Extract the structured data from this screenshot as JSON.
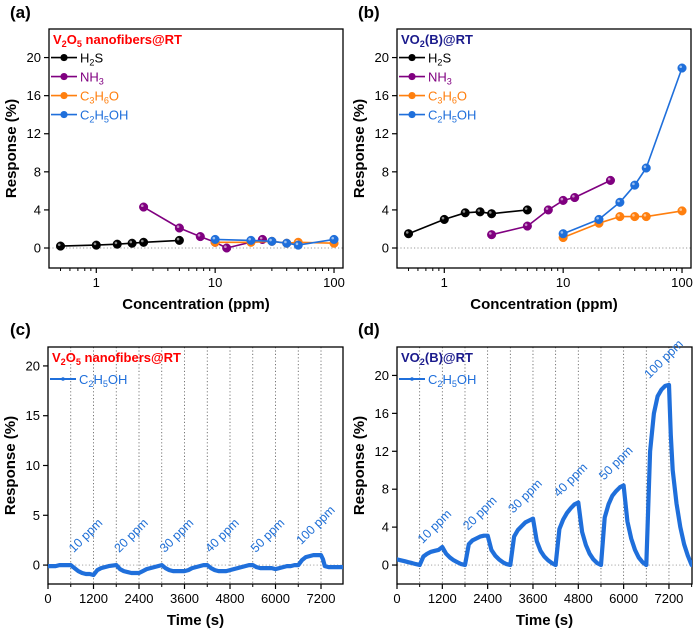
{
  "colors": {
    "H2S": "#000000",
    "NH3": "#800080",
    "C3H6O": "#ff7f0e",
    "C2H5OH": "#1f6fdb",
    "title_a": "#ff0000",
    "title_b": "#1a1a8c",
    "annotation": "#1f6fd6",
    "zero_line": "#9a9a9a"
  },
  "chart_data": [
    {
      "id": "a",
      "panel_label": "(a)",
      "type": "line",
      "title": "V2O5 nanofibers@RT",
      "title_parts": [
        [
          "V",
          ""
        ],
        [
          "2",
          "sub"
        ],
        [
          "O",
          ""
        ],
        [
          "5",
          "sub"
        ],
        [
          " nanofibers@RT",
          ""
        ]
      ],
      "title_color_key": "title_a",
      "xlabel": "Concentration (ppm)",
      "ylabel": "Response (%)",
      "xscale": "log",
      "xlim": [
        0.4,
        119
      ],
      "ylim": [
        -2.1,
        23
      ],
      "xticks": [
        1,
        10,
        100
      ],
      "xtick_labels": [
        "1",
        "10",
        "100"
      ],
      "yticks": [
        0,
        4,
        8,
        12,
        16,
        20
      ],
      "ytick_labels": [
        "0",
        "4",
        "8",
        "12",
        "16",
        "20"
      ],
      "zero_line": true,
      "legend_position": "top-left",
      "series": [
        {
          "name": "H2S",
          "label_parts": [
            [
              "H",
              ""
            ],
            [
              "2",
              "sub"
            ],
            [
              "S",
              ""
            ]
          ],
          "color_key": "H2S",
          "x": [
            0.5,
            1,
            1.5,
            2,
            2.5,
            5
          ],
          "y": [
            0.2,
            0.3,
            0.4,
            0.5,
            0.6,
            0.8
          ]
        },
        {
          "name": "NH3",
          "label_parts": [
            [
              "NH",
              ""
            ],
            [
              "3",
              "sub"
            ]
          ],
          "color_key": "NH3",
          "x": [
            2.5,
            5,
            7.5,
            10,
            12.5,
            25
          ],
          "y": [
            4.3,
            2.1,
            1.2,
            0.6,
            0.0,
            0.9
          ]
        },
        {
          "name": "C3H6O",
          "label_parts": [
            [
              "C",
              ""
            ],
            [
              "3",
              "sub"
            ],
            [
              "H",
              ""
            ],
            [
              "6",
              "sub"
            ],
            [
              "O",
              ""
            ]
          ],
          "color_key": "C3H6O",
          "x": [
            10,
            20,
            30,
            40,
            50,
            100
          ],
          "y": [
            0.6,
            0.6,
            0.7,
            0.5,
            0.6,
            0.5
          ]
        },
        {
          "name": "C2H5OH",
          "label_parts": [
            [
              "C",
              ""
            ],
            [
              "2",
              "sub"
            ],
            [
              "H",
              ""
            ],
            [
              "5",
              "sub"
            ],
            [
              "OH",
              ""
            ]
          ],
          "color_key": "C2H5OH",
          "x": [
            10,
            20,
            30,
            40,
            50,
            100
          ],
          "y": [
            0.9,
            0.8,
            0.7,
            0.5,
            0.3,
            0.9
          ]
        }
      ]
    },
    {
      "id": "b",
      "panel_label": "(b)",
      "type": "line",
      "title": "VO2(B)@RT",
      "title_parts": [
        [
          "VO",
          ""
        ],
        [
          "2",
          "sub"
        ],
        [
          "(B)@RT",
          ""
        ]
      ],
      "title_color_key": "title_b",
      "xlabel": "Concentration (ppm)",
      "ylabel": "Response (%)",
      "xscale": "log",
      "xlim": [
        0.4,
        119
      ],
      "ylim": [
        -2.1,
        23
      ],
      "xticks": [
        1,
        10,
        100
      ],
      "xtick_labels": [
        "1",
        "10",
        "100"
      ],
      "yticks": [
        0,
        4,
        8,
        12,
        16,
        20
      ],
      "ytick_labels": [
        "0",
        "4",
        "8",
        "12",
        "16",
        "20"
      ],
      "zero_line": true,
      "legend_position": "top-left",
      "series": [
        {
          "name": "H2S",
          "label_parts": [
            [
              "H",
              ""
            ],
            [
              "2",
              "sub"
            ],
            [
              "S",
              ""
            ]
          ],
          "color_key": "H2S",
          "x": [
            0.5,
            1,
            1.5,
            2,
            2.5,
            5
          ],
          "y": [
            1.5,
            3.0,
            3.7,
            3.8,
            3.6,
            4.0
          ]
        },
        {
          "name": "NH3",
          "label_parts": [
            [
              "NH",
              ""
            ],
            [
              "3",
              "sub"
            ]
          ],
          "color_key": "NH3",
          "x": [
            2.5,
            5,
            7.5,
            10,
            12.5,
            25
          ],
          "y": [
            1.4,
            2.3,
            4.0,
            5.0,
            5.3,
            7.1
          ]
        },
        {
          "name": "C3H6O",
          "label_parts": [
            [
              "C",
              ""
            ],
            [
              "3",
              "sub"
            ],
            [
              "H",
              ""
            ],
            [
              "6",
              "sub"
            ],
            [
              "O",
              ""
            ]
          ],
          "color_key": "C3H6O",
          "x": [
            10,
            20,
            30,
            40,
            50,
            100
          ],
          "y": [
            1.1,
            2.6,
            3.3,
            3.3,
            3.3,
            3.9
          ]
        },
        {
          "name": "C2H5OH",
          "label_parts": [
            [
              "C",
              ""
            ],
            [
              "2",
              "sub"
            ],
            [
              "H",
              ""
            ],
            [
              "5",
              "sub"
            ],
            [
              "OH",
              ""
            ]
          ],
          "color_key": "C2H5OH",
          "x": [
            10,
            20,
            30,
            40,
            50,
            100
          ],
          "y": [
            1.5,
            3.0,
            4.8,
            6.6,
            8.4,
            18.9
          ]
        }
      ]
    },
    {
      "id": "c",
      "panel_label": "(c)",
      "type": "line",
      "title": "V2O5 nanofibers@RT",
      "title_parts": [
        [
          "V",
          ""
        ],
        [
          "2",
          "sub"
        ],
        [
          "O",
          ""
        ],
        [
          "5",
          "sub"
        ],
        [
          " nanofibers@RT",
          ""
        ]
      ],
      "title_color_key": "title_a",
      "xlabel": "Time (s)",
      "ylabel": "Response (%)",
      "xscale": "linear",
      "xlim": [
        0,
        7780
      ],
      "ylim": [
        -1.9,
        21.9
      ],
      "xticks": [
        0,
        1200,
        2400,
        3600,
        4800,
        6000,
        7200
      ],
      "xtick_labels": [
        "0",
        "1200",
        "2400",
        "3600",
        "4800",
        "6000",
        "7200"
      ],
      "yticks": [
        0,
        5,
        10,
        15,
        20
      ],
      "ytick_labels": [
        "0",
        "5",
        "10",
        "15",
        "20"
      ],
      "zero_line": true,
      "vlines": [
        600,
        1200,
        1800,
        2400,
        3000,
        3600,
        4200,
        4800,
        5400,
        6000,
        6600,
        7200
      ],
      "legend_position": "top-left",
      "annotations": [
        {
          "text": "10 ppm",
          "x": 600,
          "y": 1.0
        },
        {
          "text": "20 ppm",
          "x": 1800,
          "y": 1.0
        },
        {
          "text": "30 ppm",
          "x": 3000,
          "y": 1.0
        },
        {
          "text": "40 ppm",
          "x": 4200,
          "y": 1.0
        },
        {
          "text": "50 ppm",
          "x": 5400,
          "y": 1.0
        },
        {
          "text": "100 ppm",
          "x": 6600,
          "y": 1.8
        }
      ],
      "series": [
        {
          "name": "C2H5OH",
          "label_parts": [
            [
              "C",
              ""
            ],
            [
              "2",
              "sub"
            ],
            [
              "H",
              ""
            ],
            [
              "5",
              "sub"
            ],
            [
              "OH",
              ""
            ]
          ],
          "color_key": "C2H5OH",
          "x": [
            0,
            100,
            200,
            300,
            400,
            500,
            600,
            700,
            800,
            900,
            1000,
            1100,
            1200,
            1300,
            1400,
            1500,
            1600,
            1700,
            1800,
            1900,
            2000,
            2100,
            2200,
            2300,
            2400,
            2500,
            2600,
            2700,
            2800,
            2900,
            3000,
            3100,
            3200,
            3300,
            3400,
            3500,
            3600,
            3700,
            3800,
            3900,
            4000,
            4100,
            4200,
            4300,
            4400,
            4500,
            4600,
            4700,
            4800,
            4900,
            5000,
            5100,
            5200,
            5300,
            5400,
            5500,
            5600,
            5700,
            5800,
            5900,
            6000,
            6100,
            6200,
            6300,
            6400,
            6500,
            6600,
            6700,
            6800,
            6900,
            7000,
            7100,
            7200,
            7250,
            7300,
            7400,
            7500,
            7600,
            7700,
            7780
          ],
          "y": [
            -0.1,
            -0.1,
            -0.1,
            0.0,
            0.0,
            0.0,
            0.0,
            -0.3,
            -0.6,
            -0.8,
            -0.9,
            -0.9,
            -1.0,
            -0.5,
            -0.3,
            -0.2,
            -0.1,
            -0.05,
            0.0,
            -0.4,
            -0.6,
            -0.7,
            -0.8,
            -0.8,
            -0.8,
            -0.6,
            -0.4,
            -0.3,
            -0.2,
            -0.1,
            0.0,
            -0.3,
            -0.5,
            -0.6,
            -0.6,
            -0.6,
            -0.6,
            -0.5,
            -0.3,
            -0.2,
            -0.1,
            0.0,
            0.0,
            -0.3,
            -0.5,
            -0.6,
            -0.6,
            -0.6,
            -0.5,
            -0.4,
            -0.3,
            -0.2,
            -0.1,
            0.0,
            0.0,
            -0.2,
            -0.3,
            -0.3,
            -0.3,
            -0.3,
            -0.4,
            -0.3,
            -0.2,
            -0.1,
            -0.1,
            0.0,
            0.0,
            0.5,
            0.8,
            0.9,
            1.0,
            1.0,
            1.0,
            0.6,
            -0.1,
            -0.2,
            -0.2,
            -0.2,
            -0.2,
            -0.2
          ]
        }
      ]
    },
    {
      "id": "d",
      "panel_label": "(d)",
      "type": "line",
      "title": "VO2(B)@RT",
      "title_parts": [
        [
          "VO",
          ""
        ],
        [
          "2",
          "sub"
        ],
        [
          "(B)@RT",
          ""
        ]
      ],
      "title_color_key": "title_b",
      "xlabel": "Time (s)",
      "ylabel": "Response (%)",
      "xscale": "linear",
      "xlim": [
        0,
        7810
      ],
      "ylim": [
        -2.0,
        23
      ],
      "xticks": [
        0,
        1200,
        2400,
        3600,
        4800,
        6000,
        7200
      ],
      "xtick_labels": [
        "0",
        "1200",
        "2400",
        "3600",
        "4800",
        "6000",
        "7200"
      ],
      "yticks": [
        0,
        4,
        8,
        12,
        16,
        20
      ],
      "ytick_labels": [
        "0",
        "4",
        "8",
        "12",
        "16",
        "20"
      ],
      "zero_line": true,
      "vlines": [
        600,
        1200,
        1800,
        2400,
        3000,
        3600,
        4200,
        4800,
        5400,
        6000,
        6600,
        7200
      ],
      "legend_position": "top-left",
      "annotations": [
        {
          "text": "10 ppm",
          "x": 600,
          "y": 2.0
        },
        {
          "text": "20 ppm",
          "x": 1800,
          "y": 3.4
        },
        {
          "text": "30 ppm",
          "x": 3000,
          "y": 5.2
        },
        {
          "text": "40 ppm",
          "x": 4200,
          "y": 6.9
        },
        {
          "text": "50 ppm",
          "x": 5400,
          "y": 8.7
        },
        {
          "text": "100 ppm",
          "x": 6600,
          "y": 19.4
        }
      ],
      "series": [
        {
          "name": "C2H5OH",
          "label_parts": [
            [
              "C",
              ""
            ],
            [
              "2",
              "sub"
            ],
            [
              "H",
              ""
            ],
            [
              "5",
              "sub"
            ],
            [
              "OH",
              ""
            ]
          ],
          "color_key": "C2H5OH",
          "x": [
            0,
            100,
            200,
            300,
            400,
            500,
            600,
            700,
            800,
            900,
            1000,
            1100,
            1200,
            1300,
            1400,
            1500,
            1600,
            1700,
            1800,
            1900,
            2000,
            2100,
            2200,
            2300,
            2400,
            2500,
            2600,
            2700,
            2800,
            2900,
            3000,
            3100,
            3200,
            3300,
            3400,
            3500,
            3600,
            3700,
            3800,
            3900,
            4000,
            4100,
            4200,
            4300,
            4400,
            4500,
            4600,
            4700,
            4800,
            4900,
            5000,
            5100,
            5200,
            5300,
            5400,
            5500,
            5600,
            5700,
            5800,
            5900,
            6000,
            6100,
            6200,
            6300,
            6400,
            6500,
            6600,
            6700,
            6800,
            6900,
            7000,
            7100,
            7200,
            7250,
            7300,
            7400,
            7500,
            7600,
            7700,
            7800
          ],
          "y": [
            0.6,
            0.5,
            0.4,
            0.3,
            0.2,
            0.1,
            0.0,
            0.9,
            1.2,
            1.4,
            1.5,
            1.6,
            1.9,
            1.2,
            0.8,
            0.5,
            0.3,
            0.1,
            0.0,
            2.2,
            2.6,
            2.8,
            3.0,
            3.1,
            3.1,
            1.6,
            1.0,
            0.6,
            0.3,
            0.1,
            0.0,
            3.0,
            3.7,
            4.1,
            4.5,
            4.7,
            4.9,
            2.5,
            1.5,
            0.9,
            0.5,
            0.2,
            0.0,
            3.8,
            4.8,
            5.5,
            6.0,
            6.4,
            6.6,
            3.5,
            2.1,
            1.2,
            0.6,
            0.2,
            0.0,
            5.0,
            6.4,
            7.3,
            7.8,
            8.2,
            8.4,
            4.6,
            2.8,
            1.6,
            0.8,
            0.3,
            0.0,
            12.0,
            16.0,
            17.8,
            18.5,
            18.9,
            19.0,
            13.7,
            10.0,
            6.5,
            4.0,
            2.2,
            1.0,
            0.0
          ]
        }
      ]
    }
  ]
}
